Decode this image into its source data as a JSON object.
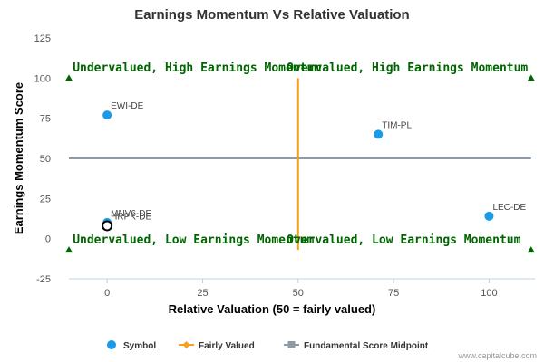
{
  "chart_data": {
    "type": "scatter",
    "title": "Earnings Momentum Vs Relative Valuation",
    "xlabel": "Relative Valuation (50 = fairly valued)",
    "ylabel": "Earnings Momentum Score",
    "xlim": [
      -10,
      112
    ],
    "ylim": [
      -25,
      125
    ],
    "x_ticks": [
      0,
      25,
      50,
      75,
      100
    ],
    "y_ticks": [
      -25,
      0,
      25,
      50,
      75,
      100,
      125
    ],
    "grid": false,
    "legend_position": "bottom",
    "colors": {
      "point": "#1a9be8",
      "fair_line": "#f7a11a",
      "midpoint_line": "#8e9aa6",
      "quadrant_text": "#006400",
      "corner_marker": "#006400",
      "highlight_ring": "#000000"
    },
    "series": [
      {
        "name": "Symbol",
        "marker": "circle",
        "points": [
          {
            "label": "EWI-DE",
            "x": 0,
            "y": 77
          },
          {
            "label": "TIM-PL",
            "x": 71,
            "y": 65
          },
          {
            "label": "LEC-DE",
            "x": 100,
            "y": 14
          },
          {
            "label": "MNV6-DE",
            "x": 0,
            "y": 10
          },
          {
            "label": "HRPK-DE",
            "x": 0,
            "y": 8,
            "highlight": true
          }
        ]
      },
      {
        "name": "Fairly Valued",
        "marker": "diamond",
        "line": {
          "x": 50,
          "y_from": -7,
          "y_to": 100
        }
      },
      {
        "name": "Fundamental Score Midpoint",
        "marker": "square",
        "line": {
          "y": 50,
          "x_from": -10,
          "x_to": 111
        }
      }
    ],
    "quadrant_labels": [
      {
        "text": "Undervalued, High Earnings Momentum",
        "x": -9,
        "y": 104
      },
      {
        "text": "Overvalued, High Earnings Momentum",
        "x": 47,
        "y": 104
      },
      {
        "text": "Undervalued, Low Earnings Momentum",
        "x": -9,
        "y": -3
      },
      {
        "text": "Overvalued, Low Earnings Momentum",
        "x": 47,
        "y": -3
      }
    ],
    "corner_markers": [
      {
        "x": -10,
        "y": 100
      },
      {
        "x": 111,
        "y": 100
      },
      {
        "x": -10,
        "y": -7
      },
      {
        "x": 111,
        "y": -7
      }
    ]
  },
  "credit": "www.capitalcube.com"
}
